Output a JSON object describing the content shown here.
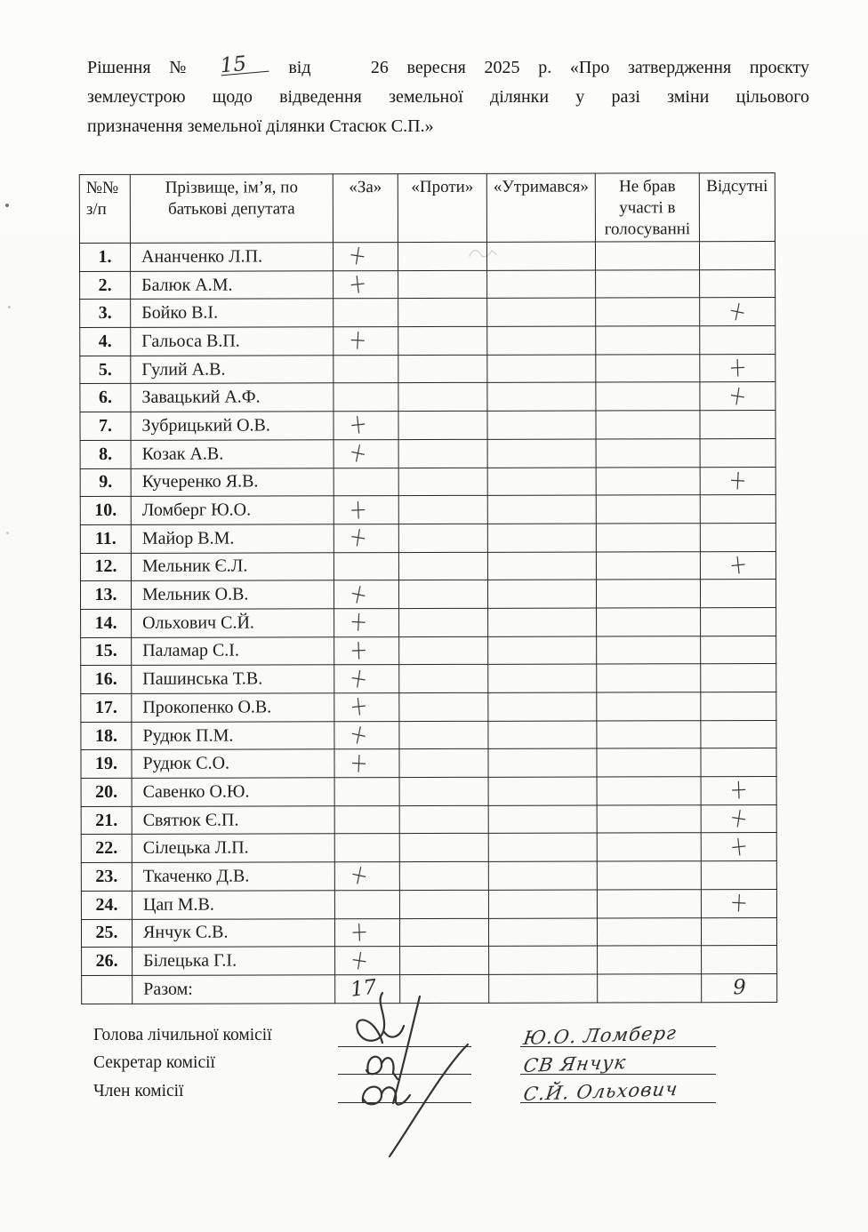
{
  "document": {
    "heading": {
      "prefix": "Рішення №",
      "number": "15",
      "vid": "від",
      "date": "26 вересня 2025 р.",
      "title_line1": "«Про затвердження проєкту",
      "title_line2": "землеустрою щодо відведення земельної ділянки у разі зміни цільового",
      "title_line3": "призначення земельної ділянки Стасюк С.П.»"
    },
    "table": {
      "columns": [
        {
          "label": "№№\nз/п"
        },
        {
          "label": "Прізвище, ім’я, по\nбатькові депутата"
        },
        {
          "label": "«За»"
        },
        {
          "label": "«Проти»"
        },
        {
          "label": "«Утримався»"
        },
        {
          "label": "Не брав\nучасті в\nголосуванні"
        },
        {
          "label": "Відсутні"
        }
      ],
      "rows": [
        {
          "num": "1.",
          "name": "Ананченко Л.П.",
          "za": "+",
          "proty": "",
          "utrymavsia": "",
          "ne_brav": "",
          "vidsutni": ""
        },
        {
          "num": "2.",
          "name": "Балюк А.М.",
          "za": "+",
          "proty": "",
          "utrymavsia": "",
          "ne_brav": "",
          "vidsutni": ""
        },
        {
          "num": "3.",
          "name": "Бойко В.І.",
          "za": "",
          "proty": "",
          "utrymavsia": "",
          "ne_brav": "",
          "vidsutni": "+"
        },
        {
          "num": "4.",
          "name": "Гальоса В.П.",
          "za": "+",
          "proty": "",
          "utrymavsia": "",
          "ne_brav": "",
          "vidsutni": ""
        },
        {
          "num": "5.",
          "name": "Гулий А.В.",
          "za": "",
          "proty": "",
          "utrymavsia": "",
          "ne_brav": "",
          "vidsutni": "+"
        },
        {
          "num": "6.",
          "name": "Завацький А.Ф.",
          "za": "",
          "proty": "",
          "utrymavsia": "",
          "ne_brav": "",
          "vidsutni": "+"
        },
        {
          "num": "7.",
          "name": "Зубрицький О.В.",
          "za": "+",
          "proty": "",
          "utrymavsia": "",
          "ne_brav": "",
          "vidsutni": ""
        },
        {
          "num": "8.",
          "name": "Козак А.В.",
          "za": "+",
          "proty": "",
          "utrymavsia": "",
          "ne_brav": "",
          "vidsutni": ""
        },
        {
          "num": "9.",
          "name": "Кучеренко Я.В.",
          "za": "",
          "proty": "",
          "utrymavsia": "",
          "ne_brav": "",
          "vidsutni": "+"
        },
        {
          "num": "10.",
          "name": "Ломберг Ю.О.",
          "za": "+",
          "proty": "",
          "utrymavsia": "",
          "ne_brav": "",
          "vidsutni": ""
        },
        {
          "num": "11.",
          "name": "Майор В.М.",
          "za": "+",
          "proty": "",
          "utrymavsia": "",
          "ne_brav": "",
          "vidsutni": ""
        },
        {
          "num": "12.",
          "name": "Мельник Є.Л.",
          "za": "",
          "proty": "",
          "utrymavsia": "",
          "ne_brav": "",
          "vidsutni": "+"
        },
        {
          "num": "13.",
          "name": "Мельник О.В.",
          "za": "+",
          "proty": "",
          "utrymavsia": "",
          "ne_brav": "",
          "vidsutni": ""
        },
        {
          "num": "14.",
          "name": "Ольхович С.Й.",
          "za": "+",
          "proty": "",
          "utrymavsia": "",
          "ne_brav": "",
          "vidsutni": ""
        },
        {
          "num": "15.",
          "name": "Паламар С.І.",
          "za": "+",
          "proty": "",
          "utrymavsia": "",
          "ne_brav": "",
          "vidsutni": ""
        },
        {
          "num": "16.",
          "name": "Пашинська Т.В.",
          "za": "+",
          "proty": "",
          "utrymavsia": "",
          "ne_brav": "",
          "vidsutni": ""
        },
        {
          "num": "17.",
          "name": "Прокопенко О.В.",
          "za": "+",
          "proty": "",
          "utrymavsia": "",
          "ne_brav": "",
          "vidsutni": ""
        },
        {
          "num": "18.",
          "name": "Рудюк П.М.",
          "za": "+",
          "proty": "",
          "utrymavsia": "",
          "ne_brav": "",
          "vidsutni": ""
        },
        {
          "num": "19.",
          "name": "Рудюк С.О.",
          "za": "+",
          "proty": "",
          "utrymavsia": "",
          "ne_brav": "",
          "vidsutni": ""
        },
        {
          "num": "20.",
          "name": "Савенко О.Ю.",
          "za": "",
          "proty": "",
          "utrymavsia": "",
          "ne_brav": "",
          "vidsutni": "+"
        },
        {
          "num": "21.",
          "name": "Святюк Є.П.",
          "za": "",
          "proty": "",
          "utrymavsia": "",
          "ne_brav": "",
          "vidsutni": "+"
        },
        {
          "num": "22.",
          "name": "Сілецька Л.П.",
          "za": "",
          "proty": "",
          "utrymavsia": "",
          "ne_brav": "",
          "vidsutni": "+"
        },
        {
          "num": "23.",
          "name": "Ткаченко Д.В.",
          "za": "+",
          "proty": "",
          "utrymavsia": "",
          "ne_brav": "",
          "vidsutni": ""
        },
        {
          "num": "24.",
          "name": "Цап М.В.",
          "za": "",
          "proty": "",
          "utrymavsia": "",
          "ne_brav": "",
          "vidsutni": "+"
        },
        {
          "num": "25.",
          "name": "Янчук С.В.",
          "za": "+",
          "proty": "",
          "utrymavsia": "",
          "ne_brav": "",
          "vidsutni": ""
        },
        {
          "num": "26.",
          "name": "Білецька Г.І.",
          "za": "+",
          "proty": "",
          "utrymavsia": "",
          "ne_brav": "",
          "vidsutni": ""
        }
      ],
      "total": {
        "num": "",
        "name": "Разом:",
        "za": "17",
        "proty": "",
        "utrymavsia": "",
        "ne_brav": "",
        "vidsutni": "9"
      }
    },
    "signatures": [
      {
        "role": "Голова лічильної комісії",
        "name": "Ю.О. Ломберг"
      },
      {
        "role": "Секретар комісії",
        "name": "СВ Янчук"
      },
      {
        "role": "Член комісії",
        "name": "С.Й. Ольхович"
      }
    ]
  }
}
